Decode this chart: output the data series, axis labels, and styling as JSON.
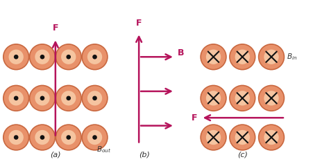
{
  "arrow_color": "#b5135b",
  "circle_fill": "#e8916a",
  "circle_edge": "#c96840",
  "circle_inner_fill": "#f5c4a0",
  "dot_color": "#111111",
  "label_color": "#333333",
  "bg_color": "#ffffff",
  "panel_a_label": "(a)",
  "panel_b_label": "(b)",
  "panel_c_label": "(c)",
  "b_out_label": "B_{out}",
  "b_in_label": "B_{in}",
  "f_label": "F",
  "b_label": "B",
  "figw": 4.51,
  "figh": 2.37,
  "dpi": 100
}
